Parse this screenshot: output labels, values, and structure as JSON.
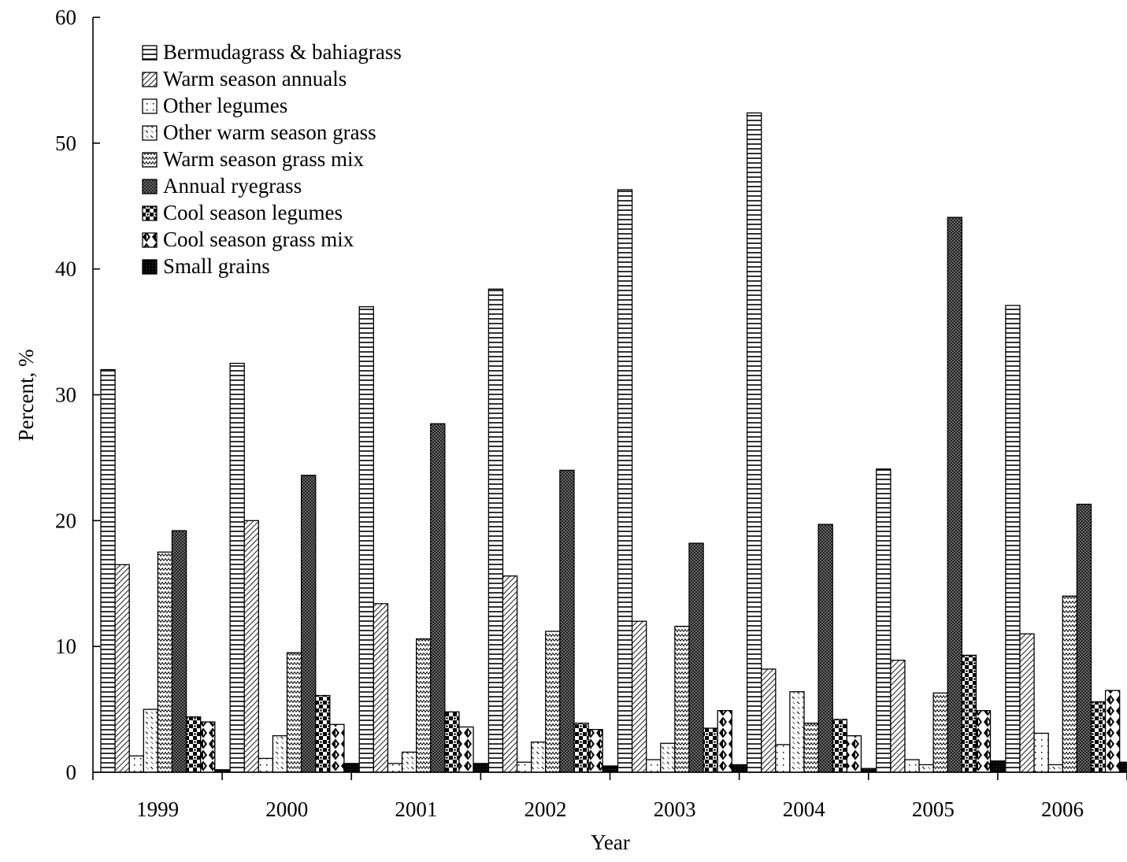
{
  "chart_data": {
    "type": "bar",
    "xlabel": "Year",
    "ylabel": "Percent, %",
    "ylim": [
      0,
      60
    ],
    "yticks": [
      0,
      10,
      20,
      30,
      40,
      50,
      60
    ],
    "grid": false,
    "legend_position": "top-left",
    "categories": [
      "1999",
      "2000",
      "2001",
      "2002",
      "2003",
      "2004",
      "2005",
      "2006"
    ],
    "series": [
      {
        "name": "Bermudagrass & bahiagrass",
        "pattern": "horizontal-lines",
        "values": [
          32.0,
          32.5,
          37.0,
          38.4,
          46.3,
          52.4,
          24.1,
          37.1
        ]
      },
      {
        "name": "Warm season annuals",
        "pattern": "diagonal-lines",
        "values": [
          16.5,
          20.0,
          13.4,
          15.6,
          12.0,
          8.2,
          8.9,
          11.0
        ]
      },
      {
        "name": "Other legumes",
        "pattern": "sparse-dots",
        "values": [
          1.3,
          1.1,
          0.7,
          0.8,
          1.0,
          2.2,
          1.0,
          3.1
        ]
      },
      {
        "name": "Other warm season grass",
        "pattern": "dashed-diagonal",
        "values": [
          5.0,
          2.9,
          1.6,
          2.4,
          2.3,
          6.4,
          0.6,
          0.6
        ]
      },
      {
        "name": "Warm season grass mix",
        "pattern": "zigzag",
        "values": [
          17.5,
          9.5,
          10.6,
          11.2,
          11.6,
          3.9,
          6.3,
          14.0
        ]
      },
      {
        "name": "Annual ryegrass",
        "pattern": "dark-crosshatch",
        "values": [
          19.2,
          23.6,
          27.7,
          24.0,
          18.2,
          19.7,
          44.1,
          21.3
        ]
      },
      {
        "name": "Cool season legumes",
        "pattern": "checker",
        "values": [
          4.4,
          6.1,
          4.8,
          3.9,
          3.5,
          4.2,
          9.3,
          5.6
        ]
      },
      {
        "name": "Cool season grass mix",
        "pattern": "diamonds",
        "values": [
          4.0,
          3.8,
          3.6,
          3.4,
          4.9,
          2.9,
          4.9,
          6.5
        ]
      },
      {
        "name": "Small grains",
        "pattern": "solid-black",
        "values": [
          0.2,
          0.7,
          0.7,
          0.5,
          0.6,
          0.3,
          0.9,
          0.8
        ]
      }
    ]
  }
}
